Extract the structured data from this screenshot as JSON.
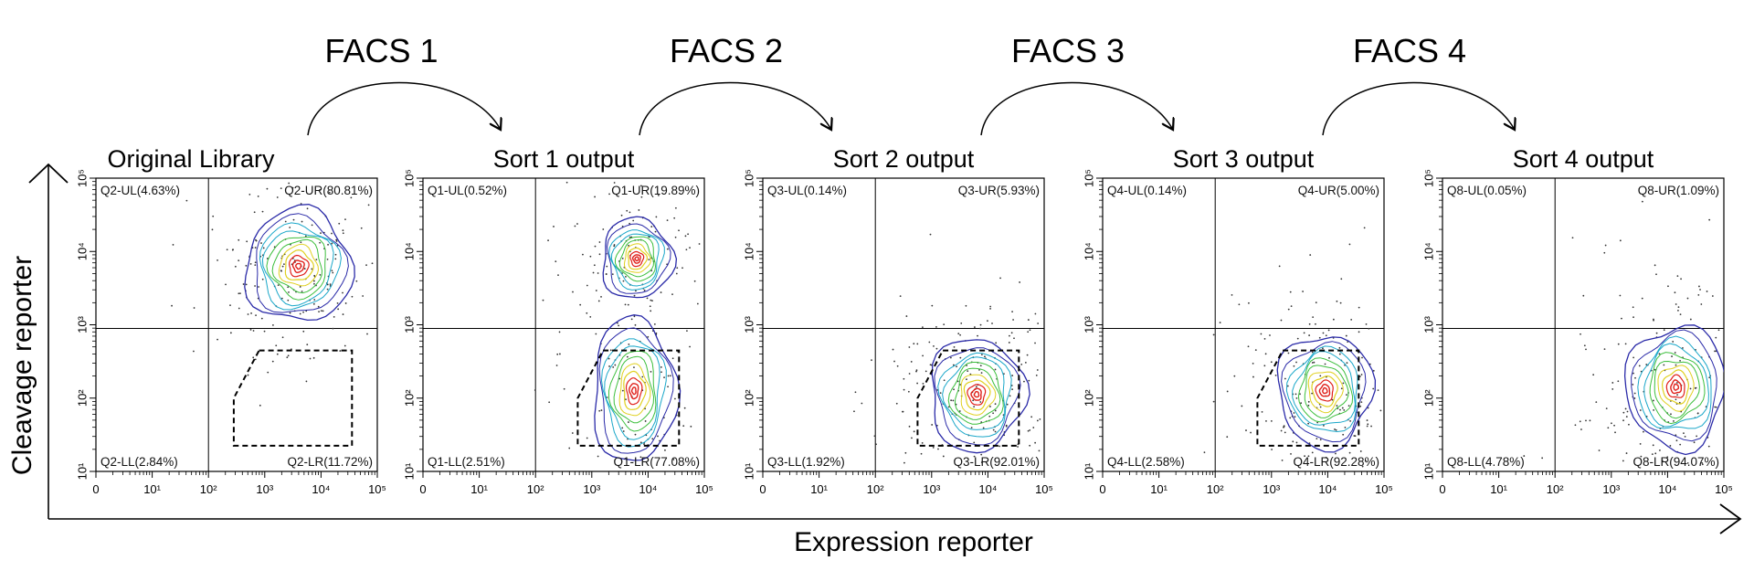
{
  "figure": {
    "x_axis_label": "Expression reporter",
    "y_axis_label": "Cleavage reporter",
    "facs_labels": [
      "FACS 1",
      "FACS 2",
      "FACS 3",
      "FACS 4"
    ]
  },
  "colors": {
    "axis": "#000000",
    "quadrant_lines": "#000000",
    "contour_outer": "#2a2aa8",
    "contour_mid": "#1aa7c9",
    "contour_inner": "#3dbf3d",
    "contour_core": "#e0d020",
    "contour_peak": "#e0201a"
  },
  "chart_data": [
    {
      "type": "scatter",
      "title": "Original  Library",
      "x_ticks": [
        "0",
        "10¹",
        "10²",
        "10³",
        "10⁴",
        "10⁵"
      ],
      "y_ticks": [
        "10¹",
        "10²",
        "10³",
        "10⁴",
        "10⁵"
      ],
      "scale": "logicle",
      "quadrants": {
        "UL": "Q2-UL(4.63%)",
        "UR": "Q2-UR(80.81%)",
        "LL": "Q2-LL(2.84%)",
        "LR": "Q2-LR(11.72%)"
      },
      "quadrant_values": {
        "UL": 4.63,
        "UR": 80.81,
        "LL": 2.84,
        "LR": 11.72
      },
      "populations": [
        {
          "x": 3.6,
          "y": 3.8,
          "sx": 0.45,
          "sy": 0.35,
          "weight": 1.0
        }
      ],
      "gate": true
    },
    {
      "type": "scatter",
      "title": "Sort 1 output",
      "x_ticks": [
        "0",
        "10¹",
        "10²",
        "10³",
        "10⁴",
        "10⁵"
      ],
      "y_ticks": [
        "10¹",
        "10²",
        "10³",
        "10⁴",
        "10⁵"
      ],
      "scale": "logicle",
      "quadrants": {
        "UL": "Q1-UL(0.52%)",
        "UR": "Q1-UR(19.89%)",
        "LL": "Q1-LL(2.51%)",
        "LR": "Q1-LR(77.08%)"
      },
      "quadrant_values": {
        "UL": 0.52,
        "UR": 19.89,
        "LL": 2.51,
        "LR": 77.08
      },
      "populations": [
        {
          "x": 3.8,
          "y": 3.9,
          "sx": 0.3,
          "sy": 0.25,
          "weight": 0.4
        },
        {
          "x": 3.75,
          "y": 2.1,
          "sx": 0.35,
          "sy": 0.45,
          "weight": 1.0
        }
      ],
      "gate": true
    },
    {
      "type": "scatter",
      "title": "Sort 2 output",
      "x_ticks": [
        "0",
        "10¹",
        "10²",
        "10³",
        "10⁴",
        "10⁵"
      ],
      "y_ticks": [
        "10¹",
        "10²",
        "10³",
        "10⁴",
        "10⁵"
      ],
      "scale": "logicle",
      "quadrants": {
        "UL": "Q3-UL(0.14%)",
        "UR": "Q3-UR(5.93%)",
        "LL": "Q3-LL(1.92%)",
        "LR": "Q3-LR(92.01%)"
      },
      "quadrant_values": {
        "UL": 0.14,
        "UR": 5.93,
        "LL": 1.92,
        "LR": 92.01
      },
      "populations": [
        {
          "x": 3.8,
          "y": 2.05,
          "sx": 0.4,
          "sy": 0.35,
          "weight": 1.0
        }
      ],
      "gate": true
    },
    {
      "type": "scatter",
      "title": "Sort 3 output",
      "x_ticks": [
        "0",
        "10¹",
        "10²",
        "10³",
        "10⁴",
        "10⁵"
      ],
      "y_ticks": [
        "10¹",
        "10²",
        "10³",
        "10⁴",
        "10⁵"
      ],
      "scale": "logicle",
      "quadrants": {
        "UL": "Q4-UL(0.14%)",
        "UR": "Q4-UR(5.00%)",
        "LL": "Q4-LL(2.58%)",
        "LR": "Q4-LR(92.28%)"
      },
      "quadrant_values": {
        "UL": 0.14,
        "UR": 5.0,
        "LL": 2.58,
        "LR": 92.28
      },
      "populations": [
        {
          "x": 3.95,
          "y": 2.1,
          "sx": 0.4,
          "sy": 0.35,
          "weight": 1.0
        }
      ],
      "gate": true
    },
    {
      "type": "scatter",
      "title": "Sort 4 output",
      "x_ticks": [
        "0",
        "10¹",
        "10²",
        "10³",
        "10⁴",
        "10⁵"
      ],
      "y_ticks": [
        "10¹",
        "10²",
        "10³",
        "10⁴",
        "10⁵"
      ],
      "scale": "logicle",
      "quadrants": {
        "UL": "Q8-UL(0.05%)",
        "UR": "Q8-UR(1.09%)",
        "LL": "Q8-LL(4.78%)",
        "LR": "Q8-LR(94.07%)"
      },
      "quadrant_values": {
        "UL": 0.05,
        "UR": 1.09,
        "LL": 4.78,
        "LR": 94.07
      },
      "populations": [
        {
          "x": 4.15,
          "y": 2.15,
          "sx": 0.42,
          "sy": 0.38,
          "weight": 1.0
        }
      ],
      "gate": false
    }
  ]
}
